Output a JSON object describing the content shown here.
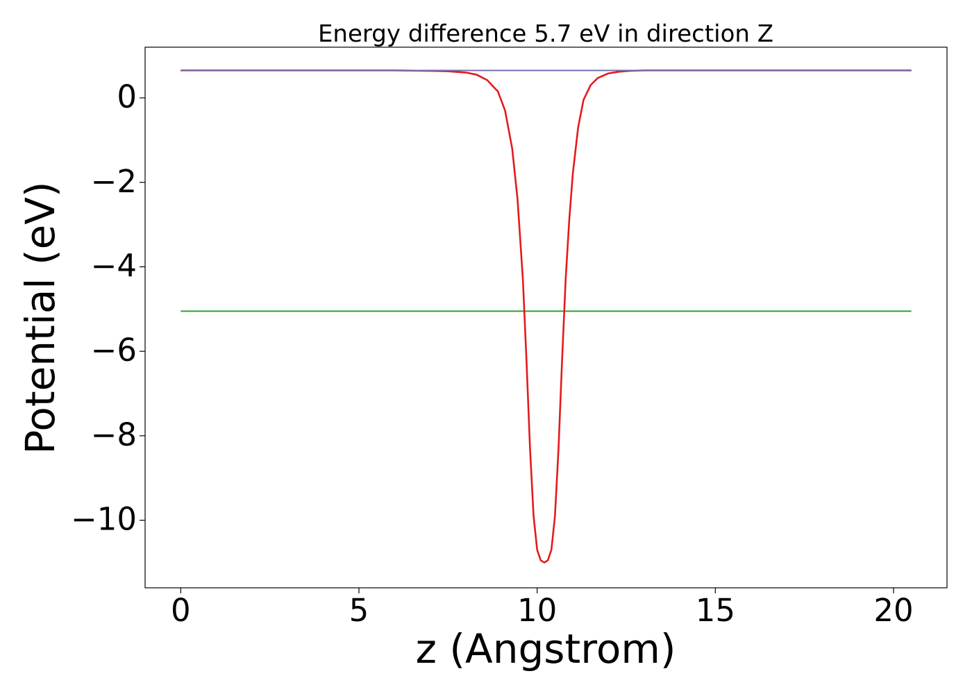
{
  "chart_data": {
    "type": "line",
    "title": "Energy difference 5.7 eV in direction Z",
    "xlabel": "z (Angstrom)",
    "ylabel": "Potential (eV)",
    "xlim": [
      -1.0,
      21.5
    ],
    "ylim": [
      -11.6,
      1.2
    ],
    "x_ticks": [
      0,
      5,
      10,
      15,
      20
    ],
    "x_tick_labels": [
      "0",
      "5",
      "10",
      "15",
      "20"
    ],
    "y_ticks": [
      0,
      -2,
      -4,
      -6,
      -8,
      -10
    ],
    "y_tick_labels": [
      "0",
      "−2",
      "−4",
      "−6",
      "−8",
      "−10"
    ],
    "grid": false,
    "legend": "none",
    "series": [
      {
        "color": "#1f77b4",
        "style": "horizontal line",
        "x": [
          0,
          20.5
        ],
        "y": [
          0.65,
          0.65
        ]
      },
      {
        "color": "#2ca02c",
        "style": "horizontal line",
        "x": [
          0,
          20.5
        ],
        "y": [
          -5.05,
          -5.05
        ]
      },
      {
        "color": "#e41a1c",
        "style": "potential curve",
        "x": [
          0,
          2,
          4,
          6,
          7,
          7.5,
          8,
          8.3,
          8.6,
          8.9,
          9.1,
          9.3,
          9.45,
          9.6,
          9.7,
          9.8,
          9.9,
          10.0,
          10.1,
          10.2,
          10.3,
          10.4,
          10.5,
          10.6,
          10.7,
          10.8,
          10.9,
          11.0,
          11.15,
          11.3,
          11.5,
          11.7,
          12.0,
          12.3,
          12.6,
          13.0,
          13.5,
          14,
          16,
          18,
          20.5
        ],
        "y": [
          0.65,
          0.65,
          0.65,
          0.65,
          0.64,
          0.63,
          0.6,
          0.55,
          0.42,
          0.15,
          -0.3,
          -1.2,
          -2.4,
          -4.3,
          -6.2,
          -8.3,
          -9.9,
          -10.7,
          -10.95,
          -11.0,
          -10.95,
          -10.7,
          -9.9,
          -8.3,
          -6.2,
          -4.3,
          -2.9,
          -1.8,
          -0.7,
          -0.05,
          0.3,
          0.47,
          0.58,
          0.62,
          0.64,
          0.65,
          0.65,
          0.65,
          0.65,
          0.65,
          0.65
        ]
      },
      {
        "color": "#7570b3",
        "style": "horizontal line",
        "x": [
          0,
          20.5
        ],
        "y": [
          0.65,
          0.65
        ]
      }
    ]
  }
}
